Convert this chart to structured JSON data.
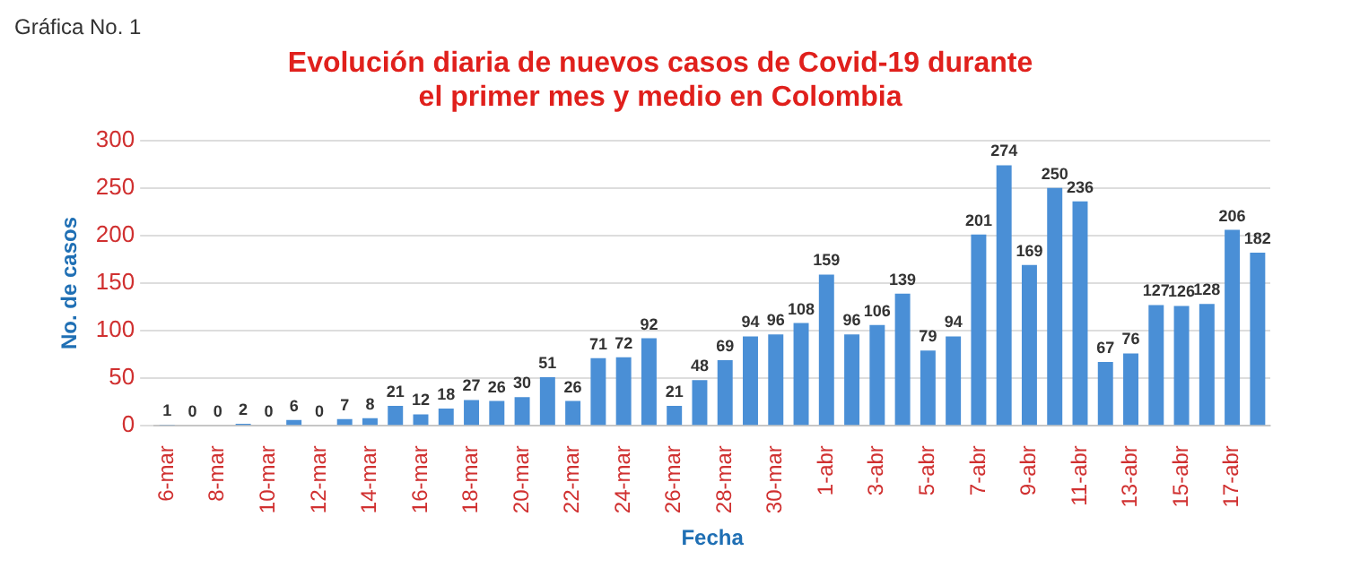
{
  "chart_data": {
    "type": "bar",
    "title": "Evolución diaria de nuevos casos de Covid-19 durante el primer mes y medio en Colombia",
    "xlabel": "Fecha",
    "ylabel": "No. de casos",
    "annotations": [
      "Gráfica No. 1"
    ],
    "categories": [
      "6-mar",
      null,
      "8-mar",
      null,
      "10-mar",
      null,
      "12-mar",
      null,
      "14-mar",
      null,
      "16-mar",
      null,
      "18-mar",
      null,
      "20-mar",
      null,
      "22-mar",
      null,
      "24-mar",
      null,
      "26-mar",
      null,
      "28-mar",
      null,
      "30-mar",
      null,
      "1-abr",
      null,
      "3-abr",
      null,
      "5-abr",
      null,
      "7-abr",
      null,
      "9-abr",
      null,
      "11-abr",
      null,
      "13-abr",
      null,
      "15-abr",
      null,
      "17-abr",
      null
    ],
    "values": [
      1,
      0,
      0,
      2,
      0,
      6,
      0,
      7,
      8,
      21,
      12,
      18,
      27,
      26,
      30,
      51,
      26,
      71,
      72,
      92,
      21,
      48,
      69,
      94,
      96,
      108,
      159,
      96,
      106,
      139,
      79,
      94,
      201,
      274,
      169,
      250,
      236,
      67,
      76,
      127,
      126,
      128,
      206,
      182
    ],
    "color": "#4a8fd6",
    "ylim": [
      0,
      300
    ],
    "yticks": [
      0,
      50,
      100,
      150,
      200,
      250,
      300
    ],
    "grid": "y",
    "data_labels": true
  }
}
